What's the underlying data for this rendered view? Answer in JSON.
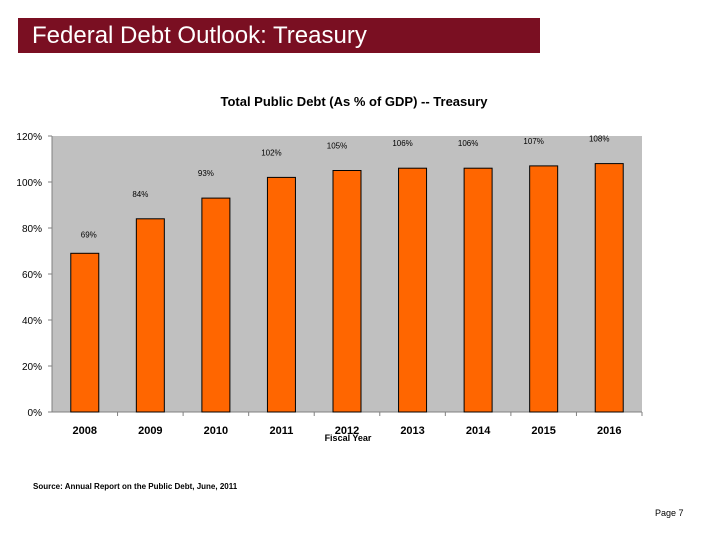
{
  "header": {
    "title": "Federal Debt Outlook: Treasury"
  },
  "chart_data": {
    "type": "bar",
    "title": "Total Public Debt (As % of GDP) -- Treasury",
    "xlabel": "Fiscal Year",
    "ylabel": "",
    "categories": [
      "2008",
      "2009",
      "2010",
      "2011",
      "2012",
      "2013",
      "2014",
      "2015",
      "2016"
    ],
    "values": [
      69,
      84,
      93,
      102,
      105,
      106,
      106,
      107,
      108
    ],
    "data_labels": [
      "69%",
      "84%",
      "93%",
      "102%",
      "105%",
      "106%",
      "106%",
      "107%",
      "108%"
    ],
    "ylim": [
      0,
      120
    ],
    "y_ticks": [
      0,
      20,
      40,
      60,
      80,
      100,
      120
    ],
    "y_tick_labels": [
      "0%",
      "20%",
      "40%",
      "60%",
      "80%",
      "100%",
      "120%"
    ],
    "grid": false,
    "legend": "none",
    "colors": {
      "bar": "#ff6600",
      "plot_background": "#c0c0c0"
    }
  },
  "footer": {
    "source": "Source: Annual Report on the Public Debt, June, 2011",
    "page": "Page 7"
  }
}
